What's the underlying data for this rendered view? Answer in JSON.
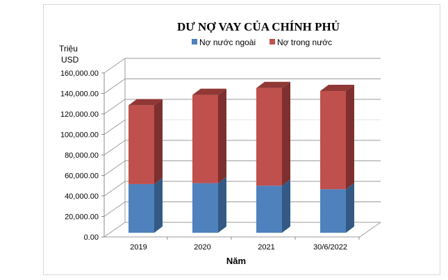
{
  "chart_data": {
    "type": "bar",
    "stacked": true,
    "three_d": true,
    "title": "DƯ NỢ VAY CỦA CHÍNH PHỦ",
    "ylabel_lines": [
      "Triệu",
      "USD"
    ],
    "xlabel": "Năm",
    "categories": [
      "2019",
      "2020",
      "2021",
      "30/6/2022"
    ],
    "ylim": [
      0,
      160000
    ],
    "yticks": [
      "0.00",
      "20,000.00",
      "40,000.00",
      "60,000.00",
      "80,000.00",
      "100,000.00",
      "120,000.00",
      "140,000.00",
      "160,000.00"
    ],
    "grid": true,
    "legend": "top",
    "series": [
      {
        "name": "Nợ nước ngoài",
        "color": "#4f81bd",
        "values": [
          47500,
          48400,
          45900,
          42500
        ]
      },
      {
        "name": "Nợ trong nước",
        "color": "#c0504d",
        "values": [
          76800,
          86100,
          95300,
          95800
        ]
      }
    ]
  }
}
